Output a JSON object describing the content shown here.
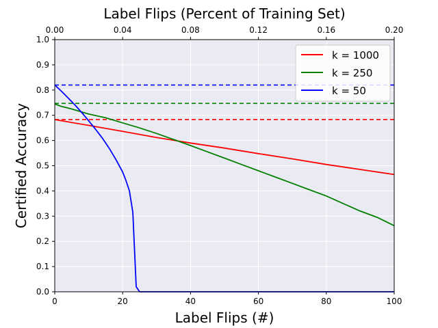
{
  "chart_data": {
    "type": "line",
    "title": "Label Flips (Percent of Training Set)",
    "xlabel": "Label Flips (#)",
    "ylabel": "Certified Accuracy",
    "xlim": [
      0,
      100
    ],
    "ylim": [
      0.0,
      1.0
    ],
    "x_ticks": [
      "0",
      "20",
      "40",
      "60",
      "80",
      "100"
    ],
    "x_tick_values": [
      0,
      20,
      40,
      60,
      80,
      100
    ],
    "y_ticks": [
      "0.0",
      "0.1",
      "0.2",
      "0.3",
      "0.4",
      "0.5",
      "0.6",
      "0.7",
      "0.8",
      "0.9",
      "1.0"
    ],
    "y_tick_values": [
      0.0,
      0.1,
      0.2,
      0.3,
      0.4,
      0.5,
      0.6,
      0.7,
      0.8,
      0.9,
      1.0
    ],
    "top_axis": {
      "xlim": [
        0.0,
        0.2
      ],
      "ticks": [
        "0.00",
        "0.04",
        "0.08",
        "0.12",
        "0.16",
        "0.20"
      ],
      "tick_values": [
        0.0,
        0.04,
        0.08,
        0.12,
        0.16,
        0.2
      ]
    },
    "grid": true,
    "background": "#eaeaf2",
    "legend_position": "top-right",
    "series": [
      {
        "name": "k = 1000",
        "color": "#ff0000",
        "x": [
          0,
          10,
          20,
          30,
          40,
          50,
          60,
          70,
          80,
          90,
          100
        ],
        "y": [
          0.683,
          0.66,
          0.636,
          0.612,
          0.59,
          0.57,
          0.548,
          0.527,
          0.505,
          0.485,
          0.465
        ]
      },
      {
        "name": "k = 250",
        "color": "#008000",
        "x": [
          0,
          2,
          5,
          10,
          15,
          20,
          25,
          30,
          35,
          40,
          45,
          50,
          55,
          60,
          65,
          70,
          75,
          80,
          85,
          90,
          95,
          100
        ],
        "y": [
          0.745,
          0.735,
          0.725,
          0.705,
          0.69,
          0.67,
          0.65,
          0.628,
          0.604,
          0.58,
          0.555,
          0.53,
          0.505,
          0.48,
          0.455,
          0.43,
          0.405,
          0.38,
          0.35,
          0.32,
          0.295,
          0.262
        ]
      },
      {
        "name": "k = 50",
        "color": "#0000ff",
        "x": [
          0,
          2,
          4,
          6,
          8,
          10,
          12,
          14,
          16,
          18,
          20,
          21,
          22,
          23,
          24,
          25,
          26,
          100
        ],
        "y": [
          0.82,
          0.795,
          0.768,
          0.74,
          0.71,
          0.678,
          0.645,
          0.61,
          0.57,
          0.525,
          0.475,
          0.44,
          0.4,
          0.315,
          0.02,
          0.0,
          0.0,
          0.0
        ]
      }
    ],
    "baselines": [
      {
        "color": "#ff0000",
        "y": 0.683
      },
      {
        "color": "#008000",
        "y": 0.747
      },
      {
        "color": "#0000ff",
        "y": 0.82
      }
    ]
  }
}
